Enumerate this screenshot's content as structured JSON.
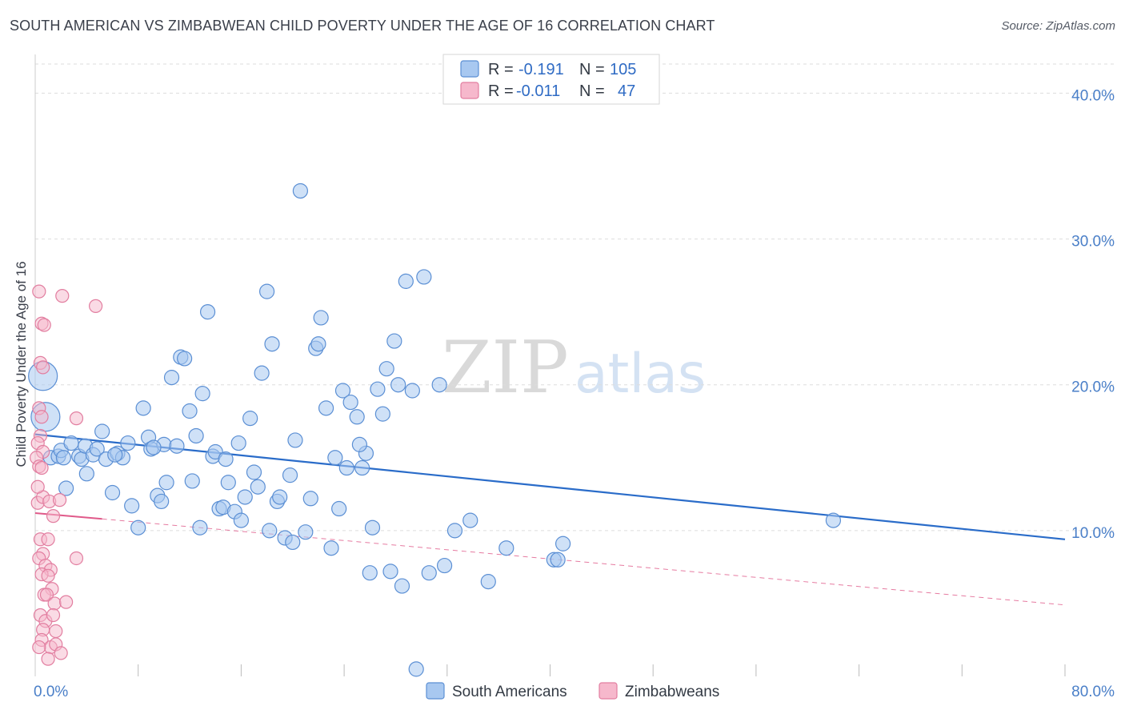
{
  "title": "SOUTH AMERICAN VS ZIMBABWEAN CHILD POVERTY UNDER THE AGE OF 16 CORRELATION CHART",
  "source": "Source: ZipAtlas.com",
  "watermark": {
    "zip": "ZIP",
    "atlas": "atlas"
  },
  "colors": {
    "blue_fill": "#a8c8f0",
    "blue_stroke": "#5b8fd4",
    "blue_line": "#2a6cc9",
    "pink_fill": "#f6b8cc",
    "pink_stroke": "#e27ea0",
    "pink_line": "#e05a8a",
    "grid": "#dddddd",
    "axis_text": "#4a7fc8"
  },
  "legend": {
    "rows": [
      {
        "r_label": "R = ",
        "r_value": "-0.191",
        "n_label": "N = ",
        "n_value": "105"
      },
      {
        "r_label": "R = ",
        "r_value": "-0.011",
        "n_label": "N = ",
        "n_value": "47"
      }
    ]
  },
  "chart_data": {
    "type": "scatter",
    "title": "SOUTH AMERICAN VS ZIMBABWEAN CHILD POVERTY UNDER THE AGE OF 16 CORRELATION CHART",
    "xlabel": "",
    "ylabel": "Child Poverty Under the Age of 16",
    "xlim": [
      0,
      80
    ],
    "ylim": [
      0,
      42
    ],
    "x_tick_labels": [
      "0.0%",
      "80.0%"
    ],
    "y_ticks": [
      10,
      20,
      30,
      40
    ],
    "y_tick_labels": [
      "10.0%",
      "20.0%",
      "30.0%",
      "40.0%"
    ],
    "grid": true,
    "legend_position": "top-center",
    "series": [
      {
        "name": "South Americans",
        "r": -0.191,
        "n": 105,
        "trend": {
          "x": [
            0,
            80
          ],
          "y": [
            16.6,
            9.4
          ]
        },
        "points": [
          [
            1.2,
            15.0
          ],
          [
            1.8,
            15.1
          ],
          [
            0.6,
            20.6
          ],
          [
            0.8,
            17.8
          ],
          [
            2.0,
            15.5
          ],
          [
            2.2,
            15.0
          ],
          [
            2.8,
            16.0
          ],
          [
            3.4,
            15.1
          ],
          [
            3.6,
            14.9
          ],
          [
            3.9,
            15.8
          ],
          [
            4.0,
            13.9
          ],
          [
            4.5,
            15.2
          ],
          [
            4.8,
            15.6
          ],
          [
            5.2,
            16.8
          ],
          [
            5.5,
            14.9
          ],
          [
            6.0,
            12.6
          ],
          [
            6.4,
            15.3
          ],
          [
            6.8,
            15.0
          ],
          [
            7.2,
            16.0
          ],
          [
            7.5,
            11.7
          ],
          [
            8.0,
            10.2
          ],
          [
            8.4,
            18.4
          ],
          [
            8.8,
            16.4
          ],
          [
            9.0,
            15.6
          ],
          [
            9.5,
            12.4
          ],
          [
            9.8,
            12.0
          ],
          [
            10.0,
            15.9
          ],
          [
            10.2,
            13.3
          ],
          [
            10.6,
            20.5
          ],
          [
            11.0,
            15.8
          ],
          [
            11.3,
            21.9
          ],
          [
            11.6,
            21.8
          ],
          [
            12.0,
            18.2
          ],
          [
            12.2,
            13.4
          ],
          [
            12.5,
            16.5
          ],
          [
            12.8,
            10.2
          ],
          [
            13.0,
            19.4
          ],
          [
            13.4,
            25.0
          ],
          [
            13.8,
            15.1
          ],
          [
            14.0,
            15.4
          ],
          [
            14.3,
            11.5
          ],
          [
            14.6,
            11.6
          ],
          [
            15.0,
            13.3
          ],
          [
            15.5,
            11.3
          ],
          [
            15.8,
            16.0
          ],
          [
            16.0,
            10.7
          ],
          [
            16.3,
            12.3
          ],
          [
            16.7,
            17.7
          ],
          [
            17.0,
            14.0
          ],
          [
            17.3,
            13.0
          ],
          [
            17.6,
            20.8
          ],
          [
            18.0,
            26.4
          ],
          [
            18.4,
            22.8
          ],
          [
            18.8,
            12.0
          ],
          [
            19.0,
            12.3
          ],
          [
            19.4,
            9.5
          ],
          [
            19.8,
            13.8
          ],
          [
            20.0,
            9.2
          ],
          [
            20.2,
            16.2
          ],
          [
            20.6,
            33.3
          ],
          [
            21.0,
            9.9
          ],
          [
            21.4,
            12.2
          ],
          [
            21.8,
            22.5
          ],
          [
            22.0,
            22.8
          ],
          [
            22.2,
            24.6
          ],
          [
            22.6,
            18.4
          ],
          [
            23.0,
            8.8
          ],
          [
            23.3,
            15.0
          ],
          [
            23.6,
            11.5
          ],
          [
            23.9,
            19.6
          ],
          [
            24.2,
            14.3
          ],
          [
            24.5,
            18.8
          ],
          [
            25.0,
            17.8
          ],
          [
            25.4,
            14.3
          ],
          [
            25.7,
            15.3
          ],
          [
            26.0,
            7.1
          ],
          [
            26.2,
            10.2
          ],
          [
            26.6,
            19.7
          ],
          [
            27.0,
            18.0
          ],
          [
            27.3,
            21.1
          ],
          [
            27.6,
            7.2
          ],
          [
            27.9,
            23.0
          ],
          [
            28.2,
            20.0
          ],
          [
            28.5,
            6.2
          ],
          [
            28.8,
            27.1
          ],
          [
            29.3,
            19.6
          ],
          [
            29.6,
            0.5
          ],
          [
            30.2,
            27.4
          ],
          [
            30.6,
            7.1
          ],
          [
            31.4,
            20.0
          ],
          [
            31.8,
            7.6
          ],
          [
            32.6,
            10.0
          ],
          [
            33.8,
            10.7
          ],
          [
            35.2,
            6.5
          ],
          [
            36.6,
            8.8
          ],
          [
            40.3,
            8.0
          ],
          [
            40.6,
            8.0
          ],
          [
            41.0,
            9.1
          ],
          [
            62.0,
            10.7
          ],
          [
            2.4,
            12.9
          ],
          [
            6.2,
            15.2
          ],
          [
            9.2,
            15.7
          ],
          [
            14.8,
            14.9
          ],
          [
            18.2,
            10.0
          ],
          [
            25.2,
            15.9
          ]
        ]
      },
      {
        "name": "Zimbabweans",
        "r": -0.011,
        "n": 47,
        "trend": {
          "solid_x": [
            0,
            5.2
          ],
          "solid_y": [
            11.2,
            10.8
          ],
          "dashed_x": [
            5.2,
            80
          ],
          "dashed_y": [
            10.8,
            4.9
          ]
        },
        "points": [
          [
            0.3,
            26.4
          ],
          [
            0.5,
            24.2
          ],
          [
            0.7,
            24.1
          ],
          [
            0.4,
            21.5
          ],
          [
            0.6,
            21.2
          ],
          [
            0.3,
            18.4
          ],
          [
            0.5,
            17.8
          ],
          [
            0.4,
            16.5
          ],
          [
            0.2,
            16.0
          ],
          [
            0.6,
            15.4
          ],
          [
            0.1,
            15.0
          ],
          [
            0.3,
            14.4
          ],
          [
            0.5,
            14.3
          ],
          [
            0.2,
            11.9
          ],
          [
            0.6,
            12.3
          ],
          [
            1.1,
            12.0
          ],
          [
            1.4,
            11.0
          ],
          [
            1.9,
            12.1
          ],
          [
            0.4,
            9.4
          ],
          [
            1.0,
            9.4
          ],
          [
            0.6,
            8.4
          ],
          [
            0.3,
            8.1
          ],
          [
            0.8,
            7.6
          ],
          [
            1.2,
            7.3
          ],
          [
            0.5,
            7.0
          ],
          [
            1.0,
            6.9
          ],
          [
            1.3,
            6.0
          ],
          [
            0.7,
            5.6
          ],
          [
            0.9,
            5.6
          ],
          [
            1.5,
            5.0
          ],
          [
            2.4,
            5.1
          ],
          [
            0.4,
            4.2
          ],
          [
            0.8,
            3.8
          ],
          [
            1.4,
            4.2
          ],
          [
            0.6,
            3.2
          ],
          [
            1.6,
            3.1
          ],
          [
            0.5,
            2.5
          ],
          [
            1.2,
            2.0
          ],
          [
            1.6,
            2.2
          ],
          [
            2.0,
            1.6
          ],
          [
            1.0,
            1.2
          ],
          [
            0.3,
            2.0
          ],
          [
            3.2,
            17.7
          ],
          [
            4.7,
            25.4
          ],
          [
            2.1,
            26.1
          ],
          [
            3.2,
            8.1
          ],
          [
            0.2,
            13.0
          ]
        ]
      }
    ]
  }
}
